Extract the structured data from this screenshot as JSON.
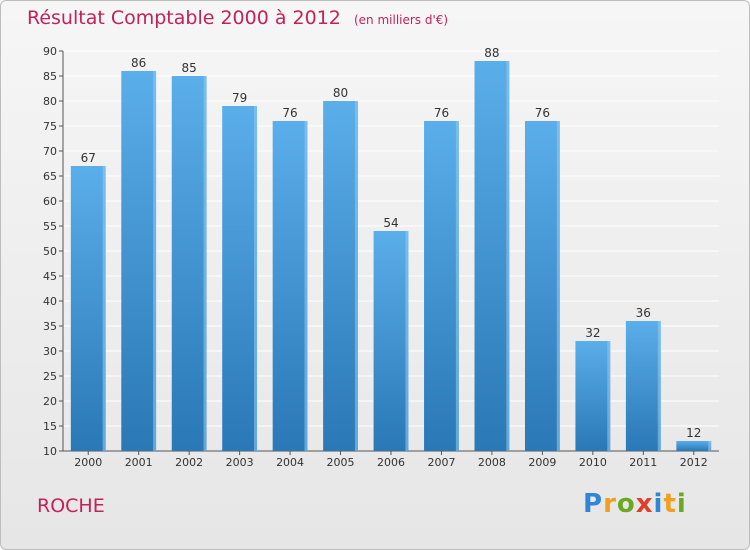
{
  "chart_data": {
    "type": "bar",
    "title": "Résultat Comptable 2000 à 2012",
    "subtitle": "(en milliers d'€)",
    "categories": [
      "2000",
      "2001",
      "2002",
      "2003",
      "2004",
      "2005",
      "2006",
      "2007",
      "2008",
      "2009",
      "2010",
      "2011",
      "2012"
    ],
    "values": [
      67,
      86,
      85,
      79,
      76,
      80,
      54,
      76,
      88,
      76,
      32,
      36,
      12
    ],
    "ylim": [
      10,
      90
    ],
    "yticks": [
      10,
      15,
      20,
      25,
      30,
      35,
      40,
      45,
      50,
      55,
      60,
      65,
      70,
      75,
      80,
      85,
      90
    ],
    "grid": true,
    "xlabel": "",
    "ylabel": ""
  },
  "footer": {
    "place_name": "ROCHE",
    "brand": "Proxiti"
  },
  "colors": {
    "title": "#c2225a",
    "bar_top": "#5aaeea",
    "bar_bottom": "#2a78b6",
    "axis": "#555555",
    "grid": "#ffffff",
    "logo": [
      "#2f86d6",
      "#f0a020",
      "#6aaa22",
      "#e43c2a",
      "#2f86d6",
      "#f0a020",
      "#6aaa22"
    ]
  }
}
